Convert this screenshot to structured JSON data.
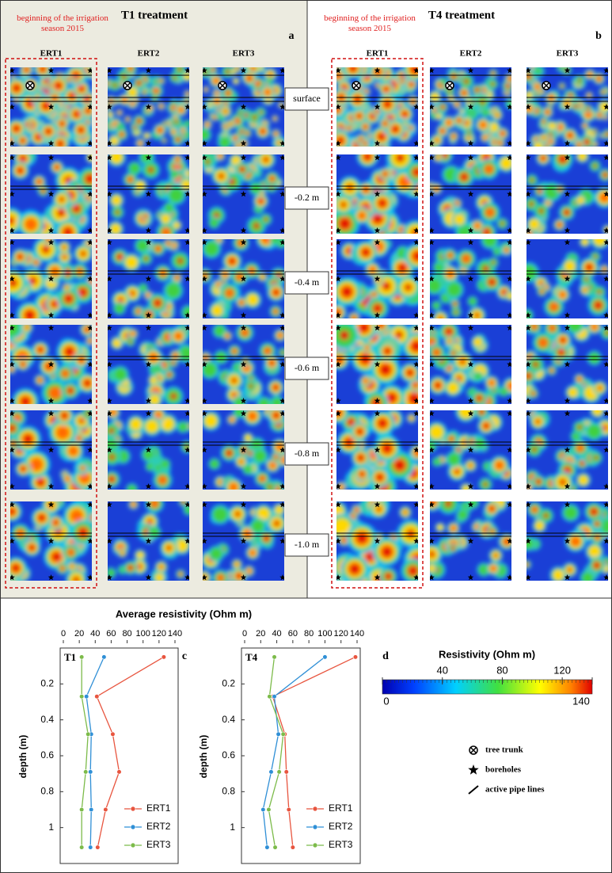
{
  "panels": [
    {
      "title": "T1 treatment",
      "letter": "a",
      "note": "beginning of the irrigation season 2015",
      "columns": [
        "ERT1",
        "ERT2",
        "ERT3"
      ]
    },
    {
      "title": "T4 treatment",
      "letter": "b",
      "note": "beginning of the irrigation season 2015",
      "columns": [
        "ERT1",
        "ERT2",
        "ERT3"
      ]
    }
  ],
  "depth_labels": [
    "surface",
    "-0.2 m",
    "-0.4 m",
    "-0.6 m",
    "-0.8 m",
    "-1.0 m"
  ],
  "chart_header": {
    "title": "Average resistivity (Ohm m)",
    "y_label": "depth (m)",
    "letter": "c"
  },
  "chart_data": [
    {
      "type": "line",
      "title": "T1",
      "x_label": "Average resistivity (Ohm m)",
      "y_label": "depth (m)",
      "xlim": [
        0,
        140
      ],
      "xticks": [
        0,
        20,
        40,
        60,
        80,
        100,
        120,
        140
      ],
      "ylim": [
        0,
        1.2
      ],
      "yticks": [
        0.2,
        0.4,
        0.6,
        0.8,
        1.0
      ],
      "y_inverted": true,
      "y": [
        0.05,
        0.27,
        0.48,
        0.69,
        0.9,
        1.11
      ],
      "series": [
        {
          "name": "ERT1",
          "color": "#e8553f",
          "values": [
            126,
            42,
            62,
            70,
            53,
            43
          ]
        },
        {
          "name": "ERT2",
          "color": "#2f8fd6",
          "values": [
            51,
            29,
            35,
            34,
            35,
            34
          ]
        },
        {
          "name": "ERT3",
          "color": "#7cbb4a",
          "values": [
            23,
            23,
            31,
            28,
            23,
            23
          ]
        }
      ]
    },
    {
      "type": "line",
      "title": "T4",
      "x_label": "Average resistivity (Ohm m)",
      "y_label": "depth (m)",
      "xlim": [
        0,
        140
      ],
      "xticks": [
        0,
        20,
        40,
        60,
        80,
        100,
        120,
        140
      ],
      "ylim": [
        0,
        1.2
      ],
      "yticks": [
        0.2,
        0.4,
        0.6,
        0.8,
        1.0
      ],
      "y_inverted": true,
      "y": [
        0.05,
        0.27,
        0.48,
        0.69,
        0.9,
        1.11
      ],
      "series": [
        {
          "name": "ERT1",
          "color": "#e8553f",
          "values": [
            138,
            35,
            50,
            52,
            55,
            60
          ]
        },
        {
          "name": "ERT2",
          "color": "#2f8fd6",
          "values": [
            100,
            37,
            42,
            33,
            23,
            28
          ]
        },
        {
          "name": "ERT3",
          "color": "#7cbb4a",
          "values": [
            37,
            31,
            48,
            43,
            30,
            38
          ]
        }
      ]
    }
  ],
  "colorbar": {
    "title": "Resistivity (Ohm m)",
    "letter": "d",
    "lim": [
      0,
      140
    ],
    "ticks": [
      0,
      40,
      80,
      120,
      140
    ]
  },
  "legend": [
    "tree trunk",
    "boreholes",
    "active pipe lines"
  ]
}
